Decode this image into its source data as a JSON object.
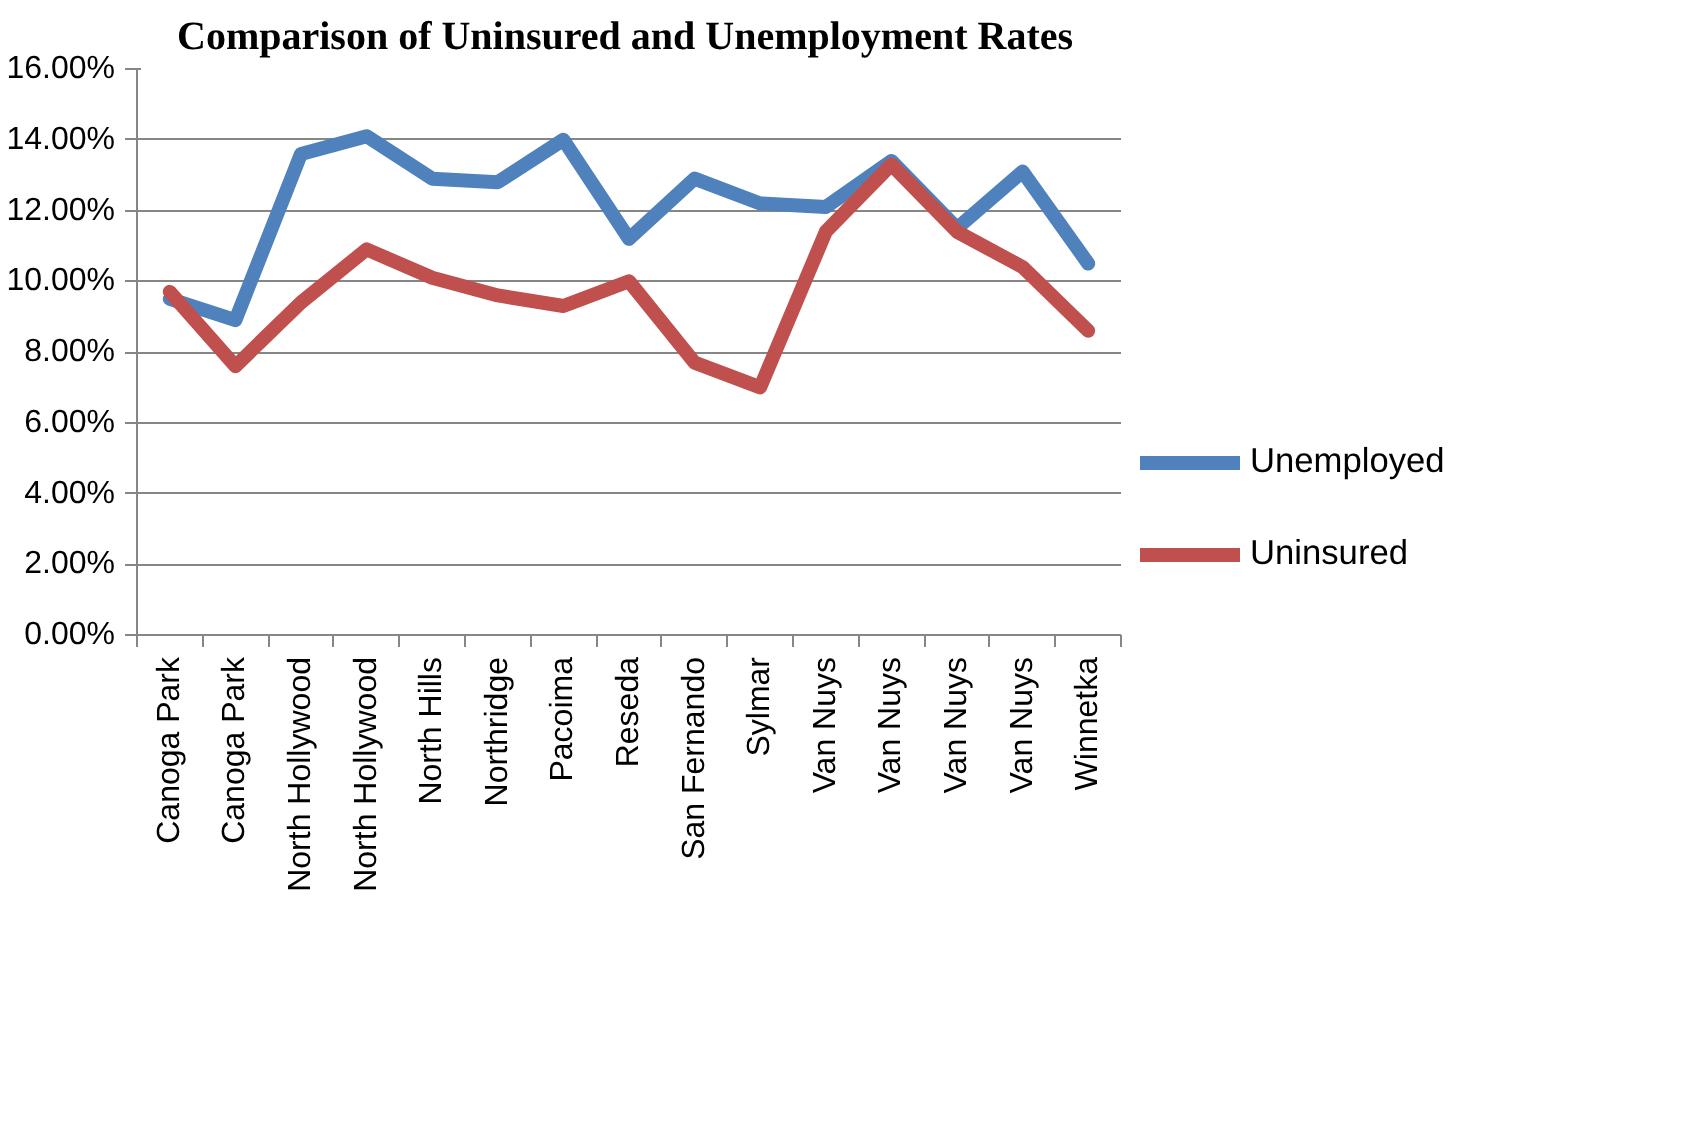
{
  "chart_data": {
    "type": "line",
    "title": "Comparison of Uninsured and Unemployment Rates",
    "categories": [
      "Canoga Park",
      "Canoga Park",
      "North Hollywood",
      "North Hollywood",
      "North Hills",
      "Northridge",
      "Pacoima",
      "Reseda",
      "San Fernando",
      "Sylmar",
      "Van Nuys",
      "Van Nuys",
      "Van Nuys",
      "Van Nuys",
      "Winnetka"
    ],
    "series": [
      {
        "name": "Unemployed",
        "color": "#4f81bd",
        "values": [
          9.5,
          8.9,
          13.6,
          14.1,
          12.9,
          12.8,
          14.0,
          11.2,
          12.9,
          12.2,
          12.1,
          13.4,
          11.5,
          13.1,
          10.5
        ]
      },
      {
        "name": "Uninsured",
        "color": "#c0504d",
        "values": [
          9.7,
          7.6,
          9.4,
          10.9,
          10.1,
          9.6,
          9.3,
          10.0,
          7.7,
          7.0,
          11.4,
          13.3,
          11.4,
          10.4,
          8.6
        ]
      }
    ],
    "ylim": [
      0,
      16
    ],
    "yticks": [
      {
        "value": 0,
        "label": "0.00%"
      },
      {
        "value": 2,
        "label": "2.00%"
      },
      {
        "value": 4,
        "label": "4.00%"
      },
      {
        "value": 6,
        "label": "6.00%"
      },
      {
        "value": 8,
        "label": "8.00%"
      },
      {
        "value": 10,
        "label": "10.00%"
      },
      {
        "value": 12,
        "label": "12.00%"
      },
      {
        "value": 14,
        "label": "14.00%"
      },
      {
        "value": 16,
        "label": "16.00%"
      }
    ],
    "grid": "y",
    "legend": "right",
    "marker": "none",
    "line_style": "solid"
  }
}
